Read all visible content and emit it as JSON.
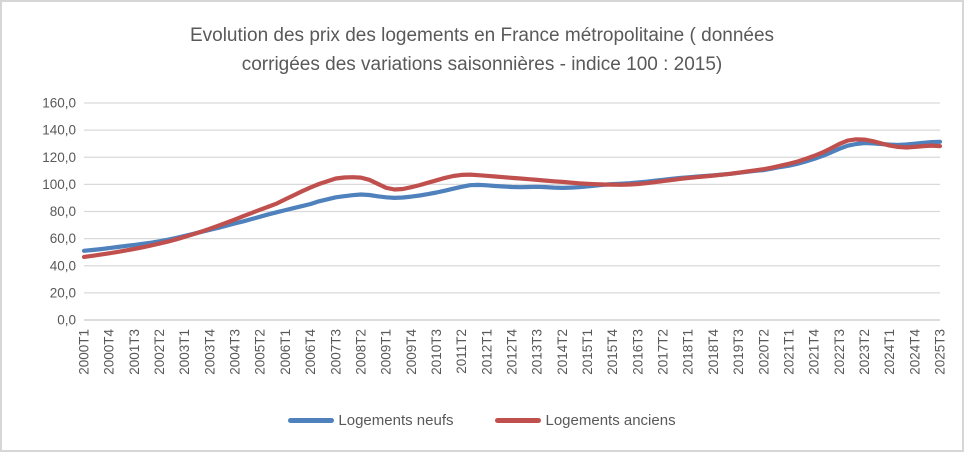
{
  "colors": {
    "grid": "#d9d9d9",
    "axis": "#c6c6c6",
    "text": "#595959",
    "series_new": "#4F81BD",
    "series_old": "#C0504D",
    "frame_border": "#d6d6d6",
    "background": "#ffffff"
  },
  "chart_data": {
    "type": "line",
    "title": "Evolution des prix des logements en France métropolitaine ( données corrigées des variations saisonnières - indice 100 : 2015)",
    "xlabel": "",
    "ylabel": "",
    "ylim": [
      0,
      160
    ],
    "y_tick_step": 20,
    "y_ticks": [
      "160,0",
      "140,0",
      "120,0",
      "100,0",
      "80,0",
      "60,0",
      "40,0",
      "20,0",
      "0,0"
    ],
    "grid": true,
    "legend_position": "bottom",
    "x_unit": "quarter",
    "x_range": [
      "2000T1",
      "2025T3"
    ],
    "x_points_total": 103,
    "x_tick_every_n_quarters": 3,
    "x_tick_labels": [
      "2000T1",
      "2000T4",
      "2001T3",
      "2002T2",
      "2003T1",
      "2003T4",
      "2004T3",
      "2005T2",
      "2006T1",
      "2006T4",
      "2007T3",
      "2008T2",
      "2009T1",
      "2009T4",
      "2010T3",
      "2011T2",
      "2012T1",
      "2012T4",
      "2013T3",
      "2014T2",
      "2015T1",
      "2015T4",
      "2016T3",
      "2017T2",
      "2018T1",
      "2018T4",
      "2019T3",
      "2020T2",
      "2021T1",
      "2021T4",
      "2022T3",
      "2023T2",
      "2024T1",
      "2024T4",
      "2025T3"
    ],
    "series": [
      {
        "name": "Logements neufs",
        "color": "#4F81BD",
        "values": [
          51.0,
          51.6,
          52.3,
          53.0,
          53.8,
          54.6,
          55.4,
          56.2,
          57.0,
          58.0,
          59.2,
          60.5,
          62.0,
          63.5,
          65.0,
          66.5,
          68.0,
          69.6,
          71.2,
          72.8,
          74.5,
          76.2,
          77.9,
          79.5,
          81.0,
          82.5,
          84.0,
          85.5,
          87.5,
          89.0,
          90.5,
          91.3,
          92.0,
          92.5,
          92.2,
          91.2,
          90.5,
          90.0,
          90.3,
          91.0,
          91.8,
          92.8,
          94.0,
          95.3,
          96.8,
          98.2,
          99.4,
          99.6,
          99.3,
          98.8,
          98.4,
          98.1,
          97.9,
          98.1,
          98.2,
          98.0,
          97.6,
          97.4,
          97.6,
          97.9,
          98.5,
          99.2,
          99.8,
          100.2,
          100.5,
          100.9,
          101.4,
          102.0,
          102.7,
          103.4,
          104.1,
          104.7,
          105.2,
          105.7,
          106.2,
          106.7,
          107.2,
          107.8,
          108.5,
          109.3,
          110.0,
          110.5,
          111.6,
          112.8,
          113.8,
          115.2,
          116.9,
          118.8,
          121.0,
          123.5,
          126.2,
          128.5,
          129.8,
          130.5,
          130.2,
          129.8,
          129.3,
          129.0,
          129.4,
          130.0,
          130.6,
          131.2,
          131.4
        ]
      },
      {
        "name": "Logements anciens",
        "color": "#C0504D",
        "values": [
          46.5,
          47.3,
          48.2,
          49.2,
          50.2,
          51.3,
          52.4,
          53.6,
          54.9,
          56.3,
          57.8,
          59.5,
          61.3,
          63.2,
          65.2,
          67.3,
          69.5,
          71.8,
          74.2,
          76.6,
          79.0,
          81.3,
          83.6,
          86.0,
          89.0,
          92.0,
          95.0,
          97.8,
          100.3,
          102.3,
          104.3,
          105.1,
          105.3,
          105.0,
          103.4,
          100.4,
          97.5,
          96.2,
          96.6,
          97.9,
          99.5,
          101.2,
          103.0,
          104.8,
          106.2,
          107.0,
          107.2,
          106.8,
          106.3,
          105.8,
          105.3,
          104.8,
          104.3,
          103.8,
          103.3,
          102.8,
          102.3,
          101.8,
          101.3,
          100.8,
          100.4,
          100.1,
          99.9,
          99.8,
          99.7,
          99.9,
          100.3,
          100.9,
          101.6,
          102.4,
          103.2,
          104.0,
          104.7,
          105.3,
          105.9,
          106.5,
          107.1,
          107.8,
          108.6,
          109.5,
          110.4,
          111.2,
          112.4,
          113.8,
          115.2,
          116.8,
          118.8,
          121.0,
          123.5,
          126.5,
          129.8,
          132.3,
          133.2,
          133.0,
          131.8,
          130.2,
          128.6,
          127.6,
          127.2,
          127.6,
          128.2,
          128.6,
          128.2
        ]
      }
    ]
  },
  "legend": {
    "items": [
      {
        "label": "Logements neufs"
      },
      {
        "label": "Logements anciens"
      }
    ]
  }
}
